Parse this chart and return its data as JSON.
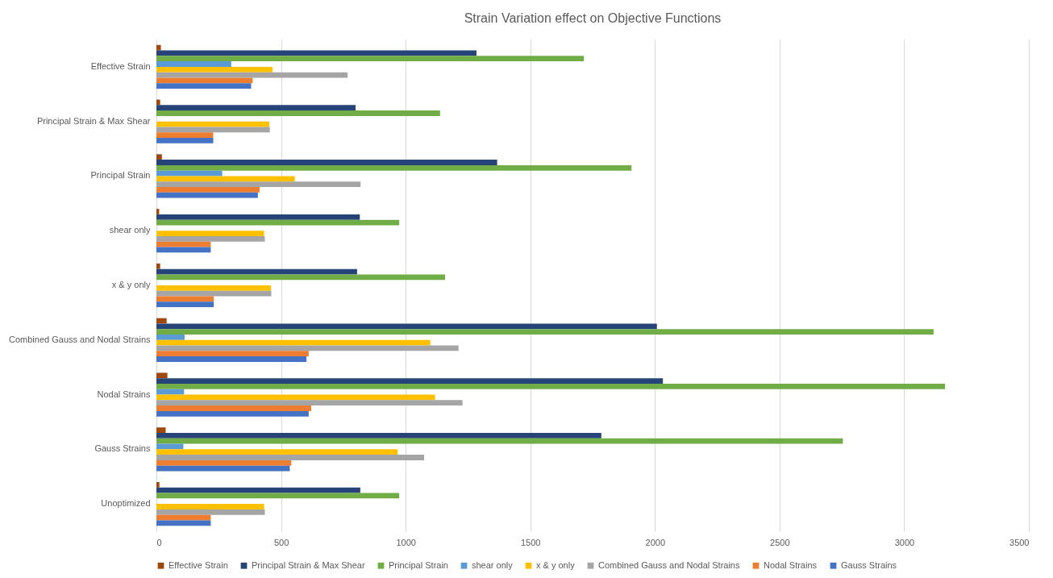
{
  "chart_data": {
    "type": "bar",
    "orientation": "horizontal",
    "title": "Strain Variation effect on Objective Functions",
    "categories": [
      "Effective Strain",
      "Principal Strain & Max Shear",
      "Principal Strain",
      "shear only",
      "x & y only",
      "Combined Gauss and Nodal Strains",
      "Nodal Strains",
      "Gauss Strains",
      "Unoptimized"
    ],
    "series": [
      {
        "name": "Effective Strain",
        "color": "#9e480e",
        "values": [
          18,
          15,
          22,
          11,
          15,
          41,
          44,
          37,
          12
        ]
      },
      {
        "name": "Principal Strain & Max Shear",
        "color": "#264478",
        "values": [
          1284,
          799,
          1367,
          816,
          805,
          2008,
          2032,
          1785,
          818
        ]
      },
      {
        "name": "Principal Strain",
        "color": "#70ad47",
        "values": [
          1715,
          1138,
          1906,
          974,
          1158,
          3118,
          3164,
          2754,
          974
        ]
      },
      {
        "name": "shear only",
        "color": "#5b9bd5",
        "values": [
          300,
          0,
          264,
          0,
          0,
          113,
          111,
          108,
          0
        ]
      },
      {
        "name": "x & y only",
        "color": "#ffc000",
        "values": [
          466,
          453,
          555,
          432,
          460,
          1099,
          1118,
          968,
          432
        ]
      },
      {
        "name": "Combined Gauss and Nodal Strains",
        "color": "#a5a5a5",
        "values": [
          767,
          455,
          819,
          435,
          461,
          1212,
          1228,
          1074,
          435
        ]
      },
      {
        "name": "Nodal Strains",
        "color": "#ed7d31",
        "values": [
          386,
          228,
          414,
          218,
          230,
          611,
          621,
          541,
          218
        ]
      },
      {
        "name": "Gauss Strains",
        "color": "#4472c4",
        "values": [
          380,
          228,
          407,
          218,
          230,
          602,
          611,
          535,
          218
        ]
      }
    ],
    "xlim": [
      0,
      3500
    ],
    "xticks": [
      0,
      500,
      1000,
      1500,
      2000,
      2500,
      3000,
      3500
    ],
    "grid": "x",
    "legend": "bottom"
  }
}
